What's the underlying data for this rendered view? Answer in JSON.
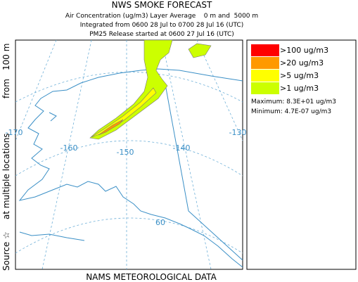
{
  "header": {
    "title": "NWS SMOKE FORECAST",
    "lines": [
      "Air Concentration (ug/m3) Layer Average    0 m and  5000 m",
      "Integrated from 0600 28 Jul to 0700 28 Jul 16 (UTC)",
      "PM25 Release started at 0600 27 Jul 16 (UTC)"
    ]
  },
  "side_label": {
    "source": "Source ☆",
    "locations": "at multiple locations",
    "from": "from",
    "height": "100 m"
  },
  "legend": {
    "items": [
      {
        "label": ">100 ug/m3",
        "color": "#ff0000"
      },
      {
        "label": ">20 ug/m3",
        "color": "#ff9900"
      },
      {
        "label": ">5 ug/m3",
        "color": "#ffff00"
      },
      {
        "label": ">1 ug/m3",
        "color": "#ccff00"
      }
    ],
    "maximum": "Maximum: 8.3E+01 ug/m3",
    "minimum": "Minimum: 4.7E-07 ug/m3"
  },
  "map_labels": [
    "-170",
    "-160",
    "-150",
    "-140",
    "-130",
    "60"
  ],
  "footer": "NAMS METEOROLOGICAL DATA"
}
